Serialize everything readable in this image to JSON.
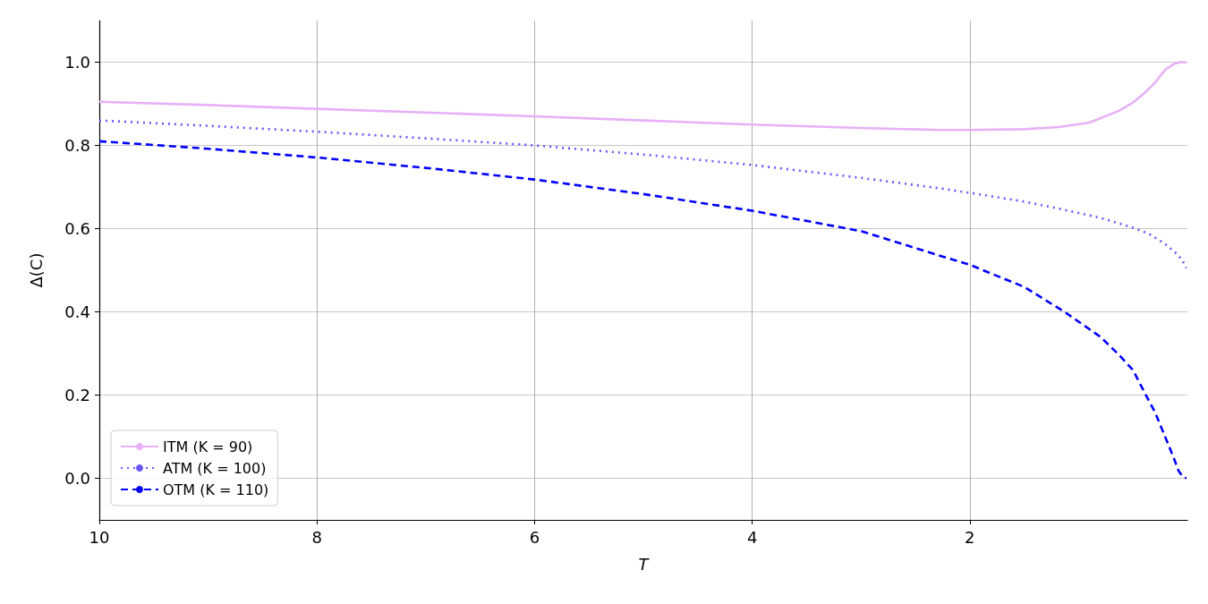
{
  "chart_data": {
    "type": "line",
    "xlabel": "T",
    "ylabel": "Δ(C)",
    "xlim": [
      10,
      0
    ],
    "xticks": [
      10,
      8,
      6,
      4,
      2
    ],
    "ylim": [
      -0.1,
      1.1
    ],
    "yticks": [
      {
        "value": 0,
        "label": "0.0"
      },
      0.2,
      0.4,
      0.6,
      0.8,
      {
        "value": 1,
        "label": "1.0"
      }
    ],
    "grid": true,
    "legend": "bottom left",
    "marker": "none",
    "series": [
      {
        "name": "ITM (K = 90)",
        "color": "#e8b0f8",
        "line_style": "solid",
        "x": [
          10,
          9,
          8,
          7,
          6,
          5,
          4,
          3,
          2.28,
          2,
          1.5,
          1.18,
          0.9,
          0.63,
          0.5,
          0.39,
          0.3,
          0.2,
          0.12,
          0.07,
          0.01
        ],
        "values": [
          0.905,
          0.897,
          0.888,
          0.879,
          0.87,
          0.86,
          0.85,
          0.842,
          0.837,
          0.837,
          0.839,
          0.844,
          0.855,
          0.883,
          0.903,
          0.927,
          0.95,
          0.983,
          0.996,
          1.0,
          1.0
        ]
      },
      {
        "name": "ATM (K = 100)",
        "color": "#6b55ff",
        "line_style": "dotted",
        "x": [
          10,
          9,
          8,
          7,
          6,
          5,
          4,
          3,
          2.28,
          2,
          1.5,
          1.18,
          0.8,
          0.53,
          0.35,
          0.2,
          0.1,
          0.05,
          0.01
        ],
        "values": [
          0.86,
          0.847,
          0.833,
          0.817,
          0.8,
          0.778,
          0.753,
          0.722,
          0.697,
          0.686,
          0.665,
          0.648,
          0.626,
          0.605,
          0.587,
          0.562,
          0.54,
          0.525,
          0.505
        ]
      },
      {
        "name": "OTM (K = 110)",
        "color": "#0000ff",
        "line_style": "dashed",
        "x": [
          10,
          9,
          8,
          7,
          6,
          5,
          4,
          3,
          2.25,
          2,
          1.5,
          1.13,
          0.8,
          0.63,
          0.5,
          0.39,
          0.3,
          0.2,
          0.12,
          0.08,
          0.04,
          0.01
        ],
        "values": [
          0.81,
          0.792,
          0.771,
          0.746,
          0.718,
          0.683,
          0.643,
          0.594,
          0.533,
          0.513,
          0.46,
          0.4,
          0.34,
          0.297,
          0.26,
          0.204,
          0.16,
          0.097,
          0.045,
          0.017,
          0.003,
          0.0
        ]
      }
    ]
  }
}
